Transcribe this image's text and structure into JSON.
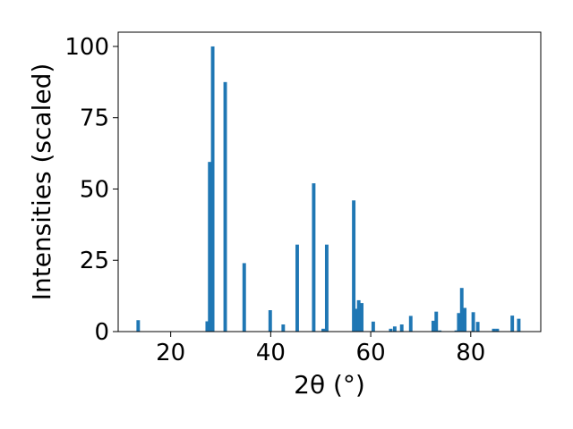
{
  "chart_data": {
    "type": "bar",
    "title": "",
    "xlabel": "2θ (°)",
    "ylabel": "Intensities (scaled)",
    "xlim": [
      9.5,
      94
    ],
    "ylim": [
      0,
      105
    ],
    "xticks": [
      20,
      40,
      60,
      80
    ],
    "yticks": [
      0,
      25,
      50,
      75,
      100
    ],
    "grid": false,
    "bar_color": "#1f77b4",
    "bar_width": 0.7,
    "x": [
      13.5,
      27.3,
      27.8,
      28.4,
      30.9,
      34.7,
      39.9,
      42.5,
      45.3,
      48.6,
      50.5,
      51.2,
      56.6,
      57.0,
      57.6,
      58.2,
      60.5,
      64.0,
      64.8,
      66.2,
      68.0,
      72.5,
      73.1,
      73.8,
      77.1,
      77.6,
      78.2,
      78.8,
      80.5,
      81.4,
      84.6,
      85.3,
      88.3,
      89.6
    ],
    "values": [
      4.0,
      3.6,
      59.5,
      100.0,
      87.5,
      24.0,
      7.5,
      2.5,
      30.5,
      52.0,
      1.0,
      30.5,
      46.0,
      8.0,
      11.0,
      10.0,
      3.5,
      1.0,
      1.8,
      2.5,
      5.5,
      3.8,
      7.0,
      0.4,
      0.4,
      6.5,
      15.3,
      8.3,
      6.8,
      3.4,
      1.0,
      1.0,
      5.6,
      4.5
    ]
  }
}
